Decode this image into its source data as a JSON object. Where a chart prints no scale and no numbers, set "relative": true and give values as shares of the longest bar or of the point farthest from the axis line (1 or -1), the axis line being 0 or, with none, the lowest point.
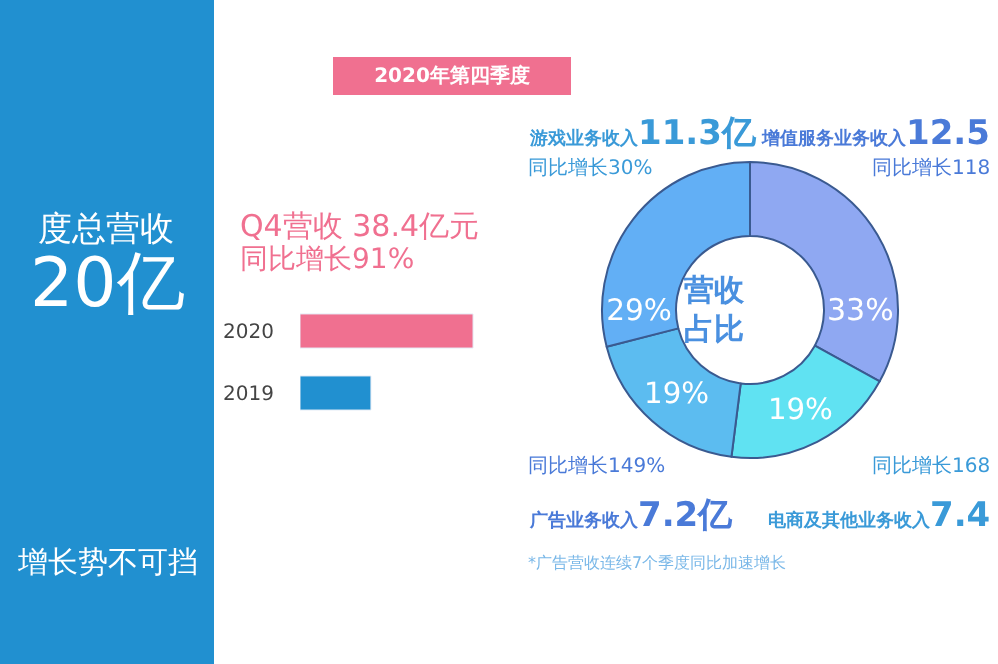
{
  "chart_data": [
    {
      "type": "other",
      "color": "#2190d0",
      "annotations": [
        "度总营收",
        "20亿",
        "增长势不可挡"
      ]
    },
    {
      "type": "bar",
      "orientation": "horizontal",
      "relative": true,
      "title": "2020年第四季度",
      "categories": [
        "2020",
        "2019"
      ],
      "values": [
        1,
        0.41
      ],
      "colors": [
        "#f07090",
        "#2190d0"
      ],
      "annotations": [
        "Q4营收 38.4亿元",
        "同比增长91%"
      ]
    },
    {
      "type": "donut",
      "title": "营收占比",
      "categories": [
        "增值服务业务收入",
        "电商及其他业务收入",
        "广告业务收入",
        "游戏业务收入"
      ],
      "values": [
        33,
        19,
        19,
        29
      ],
      "colors": [
        "#8fa8f2",
        "#60e2f2",
        "#5cbcf0",
        "#62aff5"
      ],
      "value_labels": [
        "33%",
        "19%",
        "19%",
        "29%"
      ],
      "annotations": [
        "12.5",
        "同比增长118",
        "7.4",
        "同比增长168",
        "7.2亿",
        "同比增长149%",
        "11.3亿",
        "同比增长30%",
        "*广告营收连续7个季度同比加速增长"
      ]
    }
  ]
}
